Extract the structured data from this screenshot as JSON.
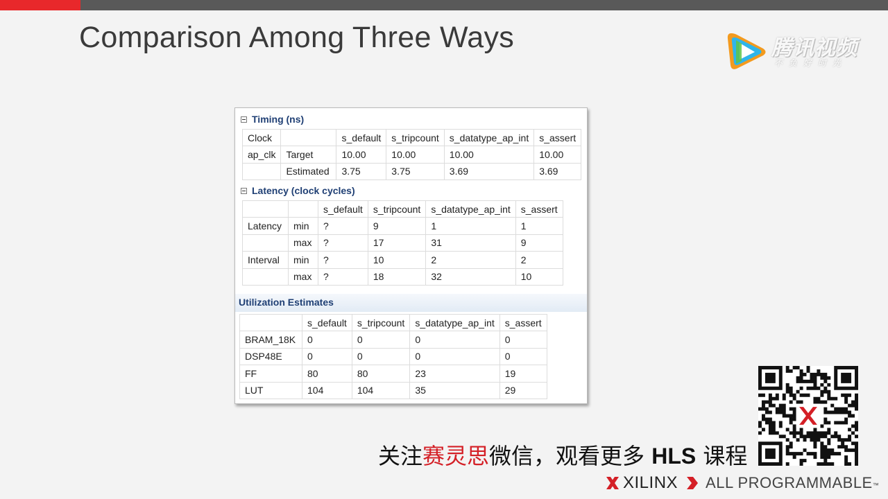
{
  "slide": {
    "title": "Comparison Among Three Ways",
    "colors": {
      "accent": "#e8282b",
      "top_bar": "#595959",
      "header_blue": "#1f3f74"
    }
  },
  "watermark": {
    "title": "腾讯视频",
    "subtitle": "不负好时光",
    "icon": "tencent-video-play-icon"
  },
  "timing": {
    "title": "Timing (ns)",
    "header": [
      "Clock",
      "",
      "s_default",
      "s_tripcount",
      "s_datatype_ap_int",
      "s_assert"
    ],
    "rows": [
      [
        "ap_clk",
        "Target",
        "10.00",
        "10.00",
        "10.00",
        "10.00"
      ],
      [
        "",
        "Estimated",
        "3.75",
        "3.75",
        "3.69",
        "3.69"
      ]
    ]
  },
  "latency": {
    "title": "Latency (clock cycles)",
    "header": [
      "",
      "",
      "s_default",
      "s_tripcount",
      "s_datatype_ap_int",
      "s_assert"
    ],
    "rows": [
      [
        "Latency",
        "min",
        "?",
        "9",
        "1",
        "1"
      ],
      [
        "",
        "max",
        "?",
        "17",
        "31",
        "9"
      ],
      [
        "Interval",
        "min",
        "?",
        "10",
        "2",
        "2"
      ],
      [
        "",
        "max",
        "?",
        "18",
        "32",
        "10"
      ]
    ]
  },
  "utilization": {
    "title": "Utilization Estimates",
    "header": [
      "",
      "s_default",
      "s_tripcount",
      "s_datatype_ap_int",
      "s_assert"
    ],
    "rows": [
      [
        "BRAM_18K",
        "0",
        "0",
        "0",
        "0"
      ],
      [
        "DSP48E",
        "0",
        "0",
        "0",
        "0"
      ],
      [
        "FF",
        "80",
        "80",
        "23",
        "19"
      ],
      [
        "LUT",
        "104",
        "104",
        "35",
        "29"
      ]
    ]
  },
  "footer": {
    "wechat_prefix": "关注",
    "wechat_brand": "赛灵思",
    "wechat_middle": "微信，观看更多 ",
    "wechat_hls": "HLS",
    "wechat_suffix": " 课程",
    "xilinx_name": "XILINX",
    "tagline": "ALL PROGRAMMABLE",
    "trademark": "™",
    "qr_icon": "qr-code-icon"
  }
}
